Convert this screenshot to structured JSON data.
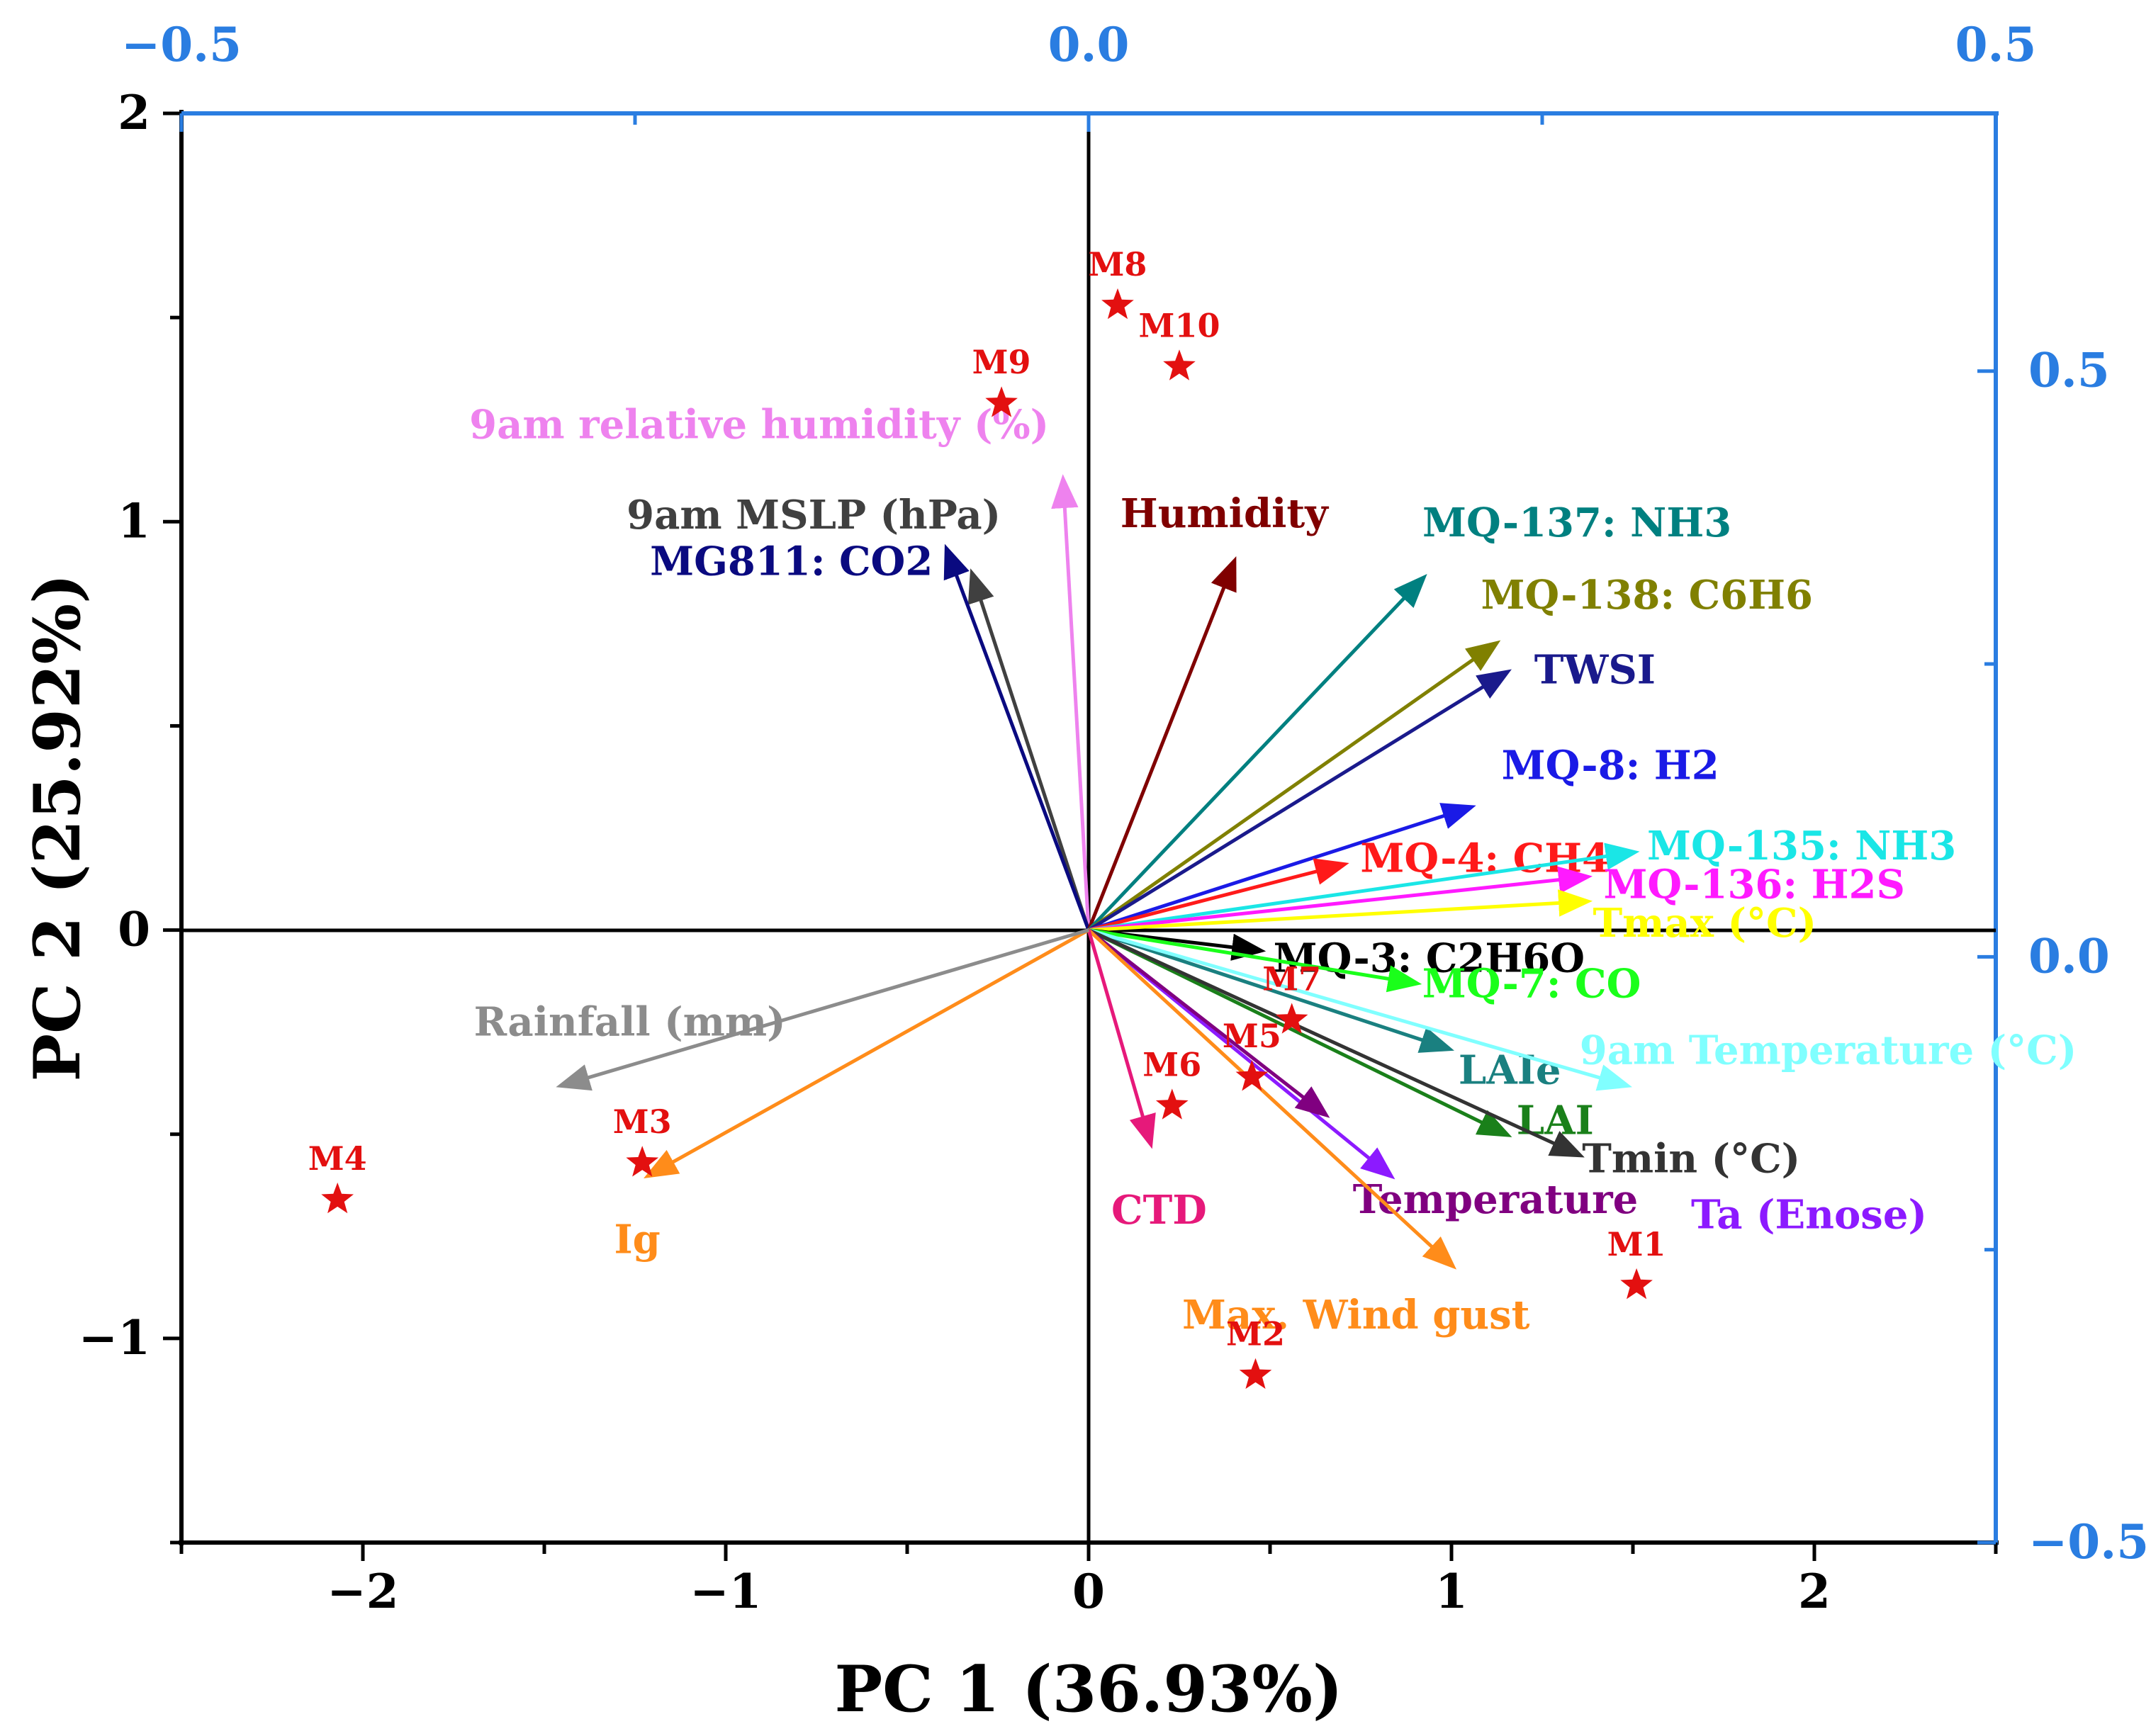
{
  "chart_data": {
    "type": "scatter",
    "subtype": "pca-biplot",
    "title": "",
    "xlabel": "PC 1 (36.93%)",
    "ylabel": "PC 2 (25.92%)",
    "xlim": [
      -2.5,
      2.5
    ],
    "ylim": [
      -1.5,
      2.0
    ],
    "loading_xlim": [
      -0.5,
      0.5
    ],
    "loading_ylim": [
      -0.5,
      0.72
    ],
    "x_ticks": [
      -2,
      -1,
      0,
      1,
      2
    ],
    "x_tick_labels": [
      "−2",
      "−1",
      "0",
      "1",
      "2"
    ],
    "y_ticks": [
      -1,
      0,
      1,
      2
    ],
    "y_tick_labels": [
      "−1",
      "0",
      "1",
      "2"
    ],
    "top_ticks": [
      -0.5,
      0.0,
      0.5
    ],
    "top_tick_labels": [
      "−0.5",
      "0.0",
      "0.5"
    ],
    "right_ticks": [
      -0.5,
      0.0,
      0.5
    ],
    "right_tick_labels": [
      "−0.5",
      "0.0",
      "0.5"
    ],
    "grid": false,
    "scores": [
      {
        "name": "M1",
        "x": 1.51,
        "y": -0.87
      },
      {
        "name": "M2",
        "x": 0.46,
        "y": -1.09
      },
      {
        "name": "M3",
        "x": -1.23,
        "y": -0.57
      },
      {
        "name": "M4",
        "x": -2.07,
        "y": -0.66
      },
      {
        "name": "M5",
        "x": 0.45,
        "y": -0.36
      },
      {
        "name": "M6",
        "x": 0.23,
        "y": -0.43
      },
      {
        "name": "M7",
        "x": 0.56,
        "y": -0.22
      },
      {
        "name": "M8",
        "x": 0.08,
        "y": 1.53
      },
      {
        "name": "M9",
        "x": -0.24,
        "y": 1.29
      },
      {
        "name": "M10",
        "x": 0.25,
        "y": 1.38
      }
    ],
    "loadings": [
      {
        "name": "9am relative humidity (%)",
        "x": -0.07,
        "y": 1.1,
        "color": "#ee82ee"
      },
      {
        "name": "9am MSLP (hPa)",
        "x": -0.32,
        "y": 0.87,
        "color": "#404040"
      },
      {
        "name": "MG811: CO2",
        "x": -0.39,
        "y": 0.93,
        "color": "#0a0a80"
      },
      {
        "name": "Humidity",
        "x": 0.4,
        "y": 0.9,
        "color": "#800000"
      },
      {
        "name": "MQ-137: NH3",
        "x": 0.92,
        "y": 0.86,
        "color": "#008080"
      },
      {
        "name": "MQ-138: C6H6",
        "x": 1.12,
        "y": 0.7,
        "color": "#808000"
      },
      {
        "name": "TWSI",
        "x": 1.15,
        "y": 0.63,
        "color": "#1a1a8c"
      },
      {
        "name": "MQ-8: H2",
        "x": 1.05,
        "y": 0.3,
        "color": "#1a1ae6"
      },
      {
        "name": "MQ-4: CH4",
        "x": 0.7,
        "y": 0.16,
        "color": "#ff1a1a"
      },
      {
        "name": "MQ-135: NH3",
        "x": 1.5,
        "y": 0.19,
        "color": "#1ae6e6"
      },
      {
        "name": "MQ-136: H2S",
        "x": 1.37,
        "y": 0.13,
        "color": "#ff1aff"
      },
      {
        "name": "Tmax (°C)",
        "x": 1.37,
        "y": 0.07,
        "color": "#ffff00"
      },
      {
        "name": "MQ-3: C2H6O",
        "x": 0.47,
        "y": -0.05,
        "color": "#000000"
      },
      {
        "name": "MQ-7: CO",
        "x": 0.9,
        "y": -0.13,
        "color": "#1aff1a"
      },
      {
        "name": "LAIe",
        "x": 0.99,
        "y": -0.29,
        "color": "#1a8080"
      },
      {
        "name": "9am Temperature (°C)",
        "x": 1.48,
        "y": -0.38,
        "color": "#80ffff"
      },
      {
        "name": "LAI",
        "x": 1.15,
        "y": -0.5,
        "color": "#1a801a"
      },
      {
        "name": "Tmin (°C)",
        "x": 1.35,
        "y": -0.55,
        "color": "#333333"
      },
      {
        "name": "Ta (Enose)",
        "x": 0.83,
        "y": -0.6,
        "color": "#8c1aff"
      },
      {
        "name": "Temperature",
        "x": 0.65,
        "y": -0.45,
        "color": "#800080"
      },
      {
        "name": "Max. Wind gust",
        "x": 1.0,
        "y": -0.82,
        "color": "#ff8c1a"
      },
      {
        "name": "CTD",
        "x": 0.17,
        "y": -0.52,
        "color": "#e6197a"
      },
      {
        "name": "Ig",
        "x": -1.21,
        "y": -0.6,
        "color": "#ff8c1a"
      },
      {
        "name": "Rainfall (mm)",
        "x": -1.45,
        "y": -0.38,
        "color": "#8c8c8c"
      }
    ]
  }
}
